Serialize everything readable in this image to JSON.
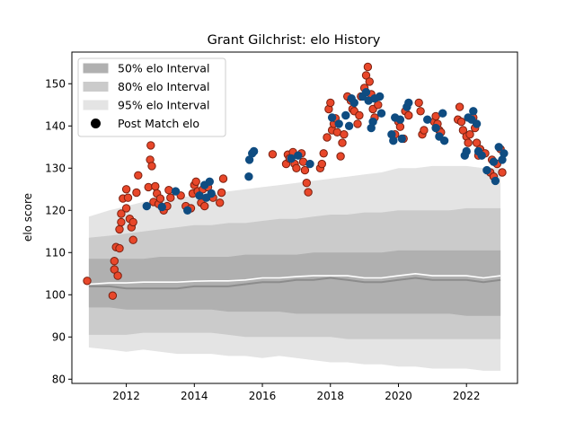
{
  "chart_data": {
    "type": "scatter",
    "title": "Grant Gilchrist: elo History",
    "xlabel": "",
    "ylabel": "elo score",
    "xlim": [
      2010.4,
      2023.5
    ],
    "ylim": [
      79,
      157.5
    ],
    "xticks": [
      2012,
      2014,
      2016,
      2018,
      2020,
      2022
    ],
    "yticks": [
      80,
      90,
      100,
      110,
      120,
      130,
      140,
      150
    ],
    "legend": {
      "placement": "top-left",
      "entries": [
        "50% elo Interval",
        "80% elo Interval",
        "95% elo Interval",
        "Post Match elo"
      ]
    },
    "colors": {
      "band50": "#b0b0b0",
      "band80": "#cbcbcb",
      "band95": "#e4e4e4",
      "mean_line": "#8c8c8c",
      "median_line": "#ffffff",
      "win_point": "#0f4c81",
      "loss_point": "#e8472a",
      "loss_edge": "#7a2010"
    },
    "bands": {
      "x": [
        2010.9,
        2011.5,
        2012.0,
        2012.5,
        2013.0,
        2013.5,
        2014.0,
        2014.5,
        2015.0,
        2015.5,
        2016.0,
        2016.5,
        2017.0,
        2017.5,
        2018.0,
        2018.5,
        2019.0,
        2019.5,
        2020.0,
        2020.5,
        2021.0,
        2021.5,
        2022.0,
        2022.5,
        2023.0
      ],
      "p95_low": [
        87.5,
        87.0,
        86.5,
        87.0,
        86.5,
        86.0,
        86.0,
        86.0,
        85.5,
        85.5,
        85.0,
        85.5,
        85.0,
        84.5,
        84.0,
        84.0,
        83.5,
        83.5,
        83.0,
        83.0,
        82.5,
        82.5,
        82.5,
        82.0,
        82.0
      ],
      "p80_low": [
        90.5,
        90.5,
        90.5,
        91.0,
        91.0,
        91.0,
        91.0,
        91.0,
        90.5,
        90.0,
        90.0,
        90.0,
        90.0,
        90.0,
        90.0,
        89.5,
        89.5,
        89.5,
        89.5,
        89.5,
        89.5,
        89.5,
        89.5,
        89.5,
        89.5
      ],
      "p50_low": [
        97.0,
        97.0,
        96.5,
        96.5,
        96.5,
        96.5,
        96.5,
        96.5,
        96.0,
        96.0,
        96.0,
        96.0,
        95.5,
        95.5,
        95.5,
        95.5,
        95.5,
        95.5,
        95.5,
        95.5,
        95.5,
        95.5,
        95.0,
        95.0,
        95.0
      ],
      "p50_high": [
        108.5,
        108.5,
        108.5,
        108.5,
        109.0,
        109.0,
        109.0,
        109.0,
        109.0,
        109.5,
        109.5,
        109.5,
        109.5,
        110.0,
        110.0,
        110.0,
        110.0,
        110.0,
        110.5,
        110.5,
        110.5,
        110.5,
        110.5,
        110.5,
        110.5
      ],
      "p80_high": [
        113.5,
        114.0,
        114.5,
        115.0,
        115.5,
        116.0,
        116.5,
        116.5,
        117.0,
        117.0,
        117.5,
        118.0,
        118.0,
        118.5,
        119.0,
        119.0,
        119.5,
        119.5,
        120.0,
        120.0,
        120.0,
        120.0,
        120.5,
        120.5,
        120.5
      ],
      "p95_high": [
        118.5,
        120.0,
        121.0,
        122.0,
        122.5,
        123.0,
        123.5,
        124.0,
        124.5,
        125.0,
        125.5,
        126.0,
        126.5,
        127.0,
        127.5,
        128.0,
        128.5,
        129.0,
        130.0,
        130.0,
        130.5,
        130.5,
        130.5,
        130.0,
        130.0
      ],
      "mean": [
        102.0,
        102.0,
        101.5,
        101.5,
        101.5,
        101.5,
        102.0,
        102.0,
        102.0,
        102.5,
        103.0,
        103.0,
        103.5,
        103.5,
        104.0,
        103.5,
        103.0,
        103.0,
        103.5,
        104.0,
        103.5,
        103.5,
        103.5,
        103.0,
        103.5
      ],
      "median": [
        102.5,
        102.8,
        102.8,
        103.0,
        103.0,
        103.0,
        103.2,
        103.3,
        103.3,
        103.5,
        104.0,
        104.0,
        104.3,
        104.5,
        104.5,
        104.5,
        104.0,
        104.0,
        104.5,
        105.0,
        104.5,
        104.5,
        104.5,
        104.0,
        104.5
      ]
    },
    "series": [
      {
        "kind": "loss",
        "points": [
          [
            2010.85,
            103.3
          ],
          [
            2011.6,
            99.8
          ],
          [
            2011.65,
            106.0
          ],
          [
            2011.65,
            108.0
          ],
          [
            2011.7,
            111.3
          ],
          [
            2011.75,
            104.5
          ],
          [
            2011.8,
            111.0
          ],
          [
            2011.8,
            115.5
          ],
          [
            2011.85,
            117.2
          ],
          [
            2011.85,
            119.2
          ],
          [
            2011.9,
            122.8
          ],
          [
            2012.0,
            125.0
          ],
          [
            2012.0,
            120.5
          ],
          [
            2012.05,
            123.0
          ],
          [
            2012.1,
            118.0
          ],
          [
            2012.15,
            116.0
          ],
          [
            2012.2,
            113.0
          ],
          [
            2012.2,
            117.2
          ],
          [
            2012.3,
            124.2
          ],
          [
            2012.35,
            128.3
          ],
          [
            2012.65,
            125.5
          ],
          [
            2012.7,
            132.0
          ],
          [
            2012.72,
            135.4
          ],
          [
            2012.75,
            130.5
          ],
          [
            2012.8,
            122.0
          ],
          [
            2012.85,
            125.7
          ],
          [
            2012.9,
            124.0
          ],
          [
            2012.95,
            121.5
          ],
          [
            2013.0,
            122.8
          ],
          [
            2013.1,
            120.0
          ],
          [
            2013.2,
            121.0
          ],
          [
            2013.25,
            124.8
          ],
          [
            2013.3,
            123.0
          ],
          [
            2013.6,
            123.5
          ],
          [
            2013.75,
            121.0
          ],
          [
            2013.9,
            120.5
          ],
          [
            2013.95,
            124.0
          ],
          [
            2014.0,
            126.0
          ],
          [
            2014.05,
            126.8
          ],
          [
            2014.1,
            124.5
          ],
          [
            2014.2,
            121.8
          ],
          [
            2014.25,
            125.0
          ],
          [
            2014.3,
            121.0
          ],
          [
            2014.4,
            125.5
          ],
          [
            2014.55,
            123.0
          ],
          [
            2014.75,
            121.8
          ],
          [
            2014.8,
            124.2
          ],
          [
            2014.85,
            127.5
          ],
          [
            2016.3,
            133.3
          ],
          [
            2016.7,
            131.0
          ],
          [
            2016.75,
            133.2
          ],
          [
            2016.8,
            132.3
          ],
          [
            2016.9,
            133.8
          ],
          [
            2016.95,
            131.0
          ],
          [
            2017.0,
            130.0
          ],
          [
            2017.15,
            133.5
          ],
          [
            2017.2,
            131.5
          ],
          [
            2017.25,
            129.5
          ],
          [
            2017.3,
            126.5
          ],
          [
            2017.35,
            124.3
          ],
          [
            2017.7,
            130.0
          ],
          [
            2017.75,
            131.0
          ],
          [
            2017.8,
            133.5
          ],
          [
            2017.9,
            137.3
          ],
          [
            2017.95,
            144.0
          ],
          [
            2018.0,
            145.5
          ],
          [
            2018.05,
            139.0
          ],
          [
            2018.1,
            140.5
          ],
          [
            2018.15,
            141.8
          ],
          [
            2018.2,
            138.5
          ],
          [
            2018.3,
            132.8
          ],
          [
            2018.35,
            136.0
          ],
          [
            2018.4,
            138.0
          ],
          [
            2018.5,
            147.0
          ],
          [
            2018.6,
            146.0
          ],
          [
            2018.65,
            144.0
          ],
          [
            2018.7,
            143.5
          ],
          [
            2018.8,
            140.5
          ],
          [
            2018.85,
            142.5
          ],
          [
            2018.9,
            147.0
          ],
          [
            2019.0,
            149.0
          ],
          [
            2019.05,
            152.0
          ],
          [
            2019.1,
            154.0
          ],
          [
            2019.15,
            150.5
          ],
          [
            2019.2,
            147.5
          ],
          [
            2019.25,
            144.0
          ],
          [
            2019.3,
            142.0
          ],
          [
            2019.4,
            145.0
          ],
          [
            2019.9,
            138.0
          ],
          [
            2020.0,
            141.0
          ],
          [
            2020.05,
            139.8
          ],
          [
            2020.15,
            137.0
          ],
          [
            2020.2,
            143.5
          ],
          [
            2020.3,
            142.5
          ],
          [
            2020.6,
            145.5
          ],
          [
            2020.65,
            143.5
          ],
          [
            2020.7,
            138.0
          ],
          [
            2020.75,
            139.0
          ],
          [
            2021.05,
            141.0
          ],
          [
            2021.1,
            142.3
          ],
          [
            2021.15,
            140.5
          ],
          [
            2021.2,
            139.0
          ],
          [
            2021.25,
            138.5
          ],
          [
            2021.75,
            141.5
          ],
          [
            2021.8,
            144.5
          ],
          [
            2021.85,
            141.0
          ],
          [
            2021.9,
            139.0
          ],
          [
            2022.0,
            137.5
          ],
          [
            2022.05,
            136.0
          ],
          [
            2022.1,
            138.0
          ],
          [
            2022.2,
            142.0
          ],
          [
            2022.25,
            139.5
          ],
          [
            2022.3,
            136.0
          ],
          [
            2022.35,
            133.0
          ],
          [
            2022.4,
            134.5
          ],
          [
            2022.55,
            133.5
          ],
          [
            2022.7,
            129.0
          ],
          [
            2022.75,
            132.0
          ],
          [
            2022.8,
            128.0
          ],
          [
            2022.9,
            131.0
          ],
          [
            2023.0,
            134.5
          ],
          [
            2023.05,
            129.0
          ]
        ]
      },
      {
        "kind": "win",
        "points": [
          [
            2012.6,
            121.0
          ],
          [
            2013.05,
            120.8
          ],
          [
            2013.45,
            124.5
          ],
          [
            2013.8,
            120.0
          ],
          [
            2014.15,
            123.5
          ],
          [
            2014.3,
            126.0
          ],
          [
            2014.35,
            123.0
          ],
          [
            2014.45,
            126.8
          ],
          [
            2014.5,
            124.0
          ],
          [
            2015.6,
            128.0
          ],
          [
            2015.62,
            132.0
          ],
          [
            2015.7,
            133.5
          ],
          [
            2015.75,
            134.0
          ],
          [
            2016.85,
            132.3
          ],
          [
            2017.05,
            133.0
          ],
          [
            2017.4,
            131.0
          ],
          [
            2018.05,
            142.0
          ],
          [
            2018.25,
            140.5
          ],
          [
            2018.45,
            142.5
          ],
          [
            2018.55,
            140.0
          ],
          [
            2018.62,
            146.5
          ],
          [
            2018.7,
            145.5
          ],
          [
            2018.95,
            147.0
          ],
          [
            2019.05,
            148.0
          ],
          [
            2019.12,
            146.0
          ],
          [
            2019.2,
            139.5
          ],
          [
            2019.25,
            141.0
          ],
          [
            2019.3,
            146.5
          ],
          [
            2019.45,
            147.0
          ],
          [
            2019.5,
            143.0
          ],
          [
            2019.8,
            138.0
          ],
          [
            2019.85,
            136.5
          ],
          [
            2019.9,
            142.0
          ],
          [
            2020.05,
            141.5
          ],
          [
            2020.1,
            137.0
          ],
          [
            2020.25,
            144.5
          ],
          [
            2020.3,
            145.5
          ],
          [
            2020.85,
            141.5
          ],
          [
            2021.1,
            139.5
          ],
          [
            2021.2,
            137.5
          ],
          [
            2021.3,
            143.0
          ],
          [
            2021.35,
            136.5
          ],
          [
            2021.95,
            133.0
          ],
          [
            2022.0,
            134.0
          ],
          [
            2022.05,
            142.0
          ],
          [
            2022.15,
            141.5
          ],
          [
            2022.2,
            143.5
          ],
          [
            2022.3,
            140.5
          ],
          [
            2022.35,
            134.0
          ],
          [
            2022.45,
            133.0
          ],
          [
            2022.6,
            129.5
          ],
          [
            2022.8,
            131.5
          ],
          [
            2022.85,
            127.0
          ],
          [
            2022.95,
            135.0
          ],
          [
            2023.05,
            132.0
          ],
          [
            2023.1,
            133.5
          ]
        ]
      }
    ]
  }
}
